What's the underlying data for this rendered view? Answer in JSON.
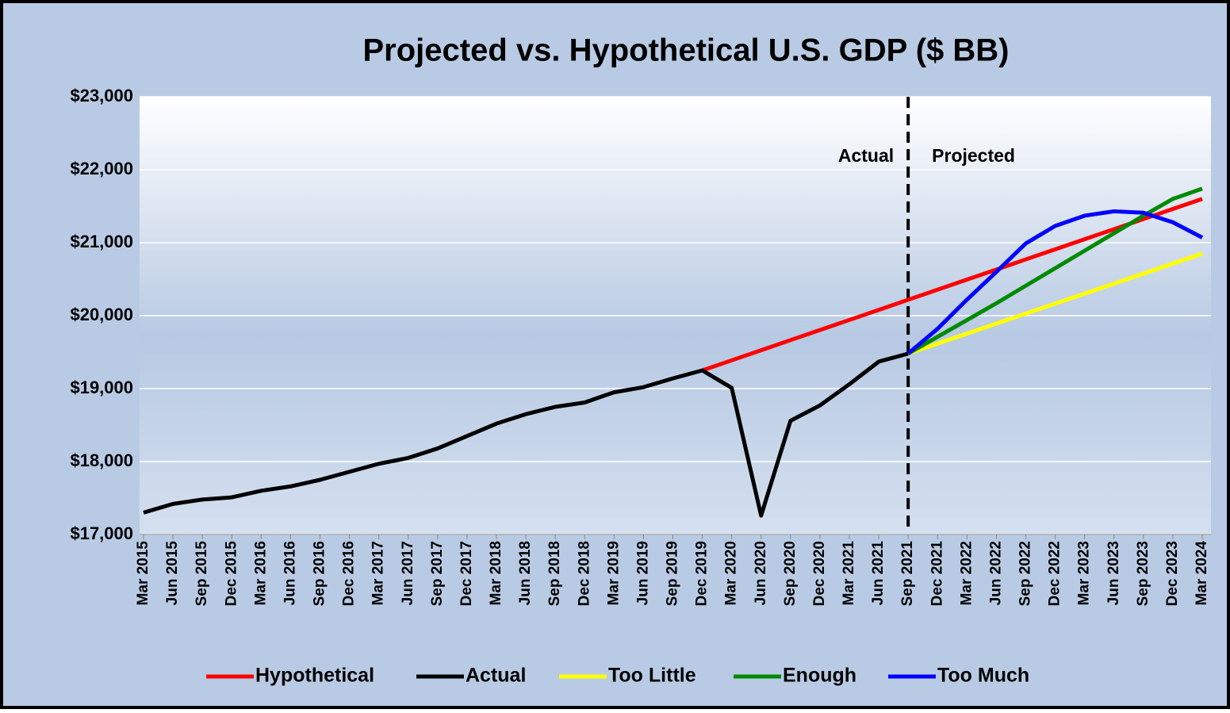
{
  "chart_data": {
    "type": "line",
    "title": "Projected vs. Hypothetical U.S. GDP ($ BB)",
    "categories": [
      "Mar 2015",
      "Jun 2015",
      "Sep 2015",
      "Dec 2015",
      "Mar 2016",
      "Jun 2016",
      "Sep 2016",
      "Dec 2016",
      "Mar 2017",
      "Jun 2017",
      "Sep 2017",
      "Dec 2017",
      "Mar 2018",
      "Jun 2018",
      "Sep 2018",
      "Dec 2018",
      "Mar 2019",
      "Jun 2019",
      "Sep 2019",
      "Dec 2019",
      "Mar 2020",
      "Jun 2020",
      "Sep 2020",
      "Dec 2020",
      "Mar 2021",
      "Jun 2021",
      "Sep 2021",
      "Dec 2021",
      "Mar 2022",
      "Jun 2022",
      "Sep 2022",
      "Dec 2022",
      "Mar 2023",
      "Jun 2023",
      "Sep 2023",
      "Dec 2023",
      "Mar 2024"
    ],
    "series": [
      {
        "name": "Hypothetical",
        "color": "#ff0000",
        "values": [
          null,
          null,
          null,
          null,
          null,
          null,
          null,
          null,
          null,
          null,
          null,
          null,
          null,
          null,
          null,
          null,
          null,
          null,
          null,
          19250,
          19388,
          19526,
          19665,
          19803,
          19941,
          20079,
          20218,
          20356,
          20494,
          20632,
          20771,
          20909,
          21047,
          21185,
          21324,
          21462,
          21600
        ]
      },
      {
        "name": "Actual",
        "color": "#000000",
        "values": [
          17300,
          17420,
          17480,
          17510,
          17600,
          17660,
          17750,
          17860,
          17970,
          18050,
          18180,
          18350,
          18520,
          18650,
          18750,
          18810,
          18950,
          19020,
          19140,
          19250,
          19010,
          17260,
          18560,
          18770,
          19060,
          19370,
          19480,
          null,
          null,
          null,
          null,
          null,
          null,
          null,
          null,
          null,
          null
        ]
      },
      {
        "name": "Too Little",
        "color": "#ffff00",
        "values": [
          null,
          null,
          null,
          null,
          null,
          null,
          null,
          null,
          null,
          null,
          null,
          null,
          null,
          null,
          null,
          null,
          null,
          null,
          null,
          null,
          null,
          null,
          null,
          null,
          null,
          null,
          19480,
          19617,
          19754,
          19891,
          20028,
          20165,
          20302,
          20439,
          20576,
          20713,
          20850
        ]
      },
      {
        "name": "Enough",
        "color": "#008a00",
        "values": [
          null,
          null,
          null,
          null,
          null,
          null,
          null,
          null,
          null,
          null,
          null,
          null,
          null,
          null,
          null,
          null,
          null,
          null,
          null,
          null,
          null,
          null,
          null,
          null,
          null,
          null,
          19480,
          19710,
          19940,
          20170,
          20410,
          20650,
          20890,
          21130,
          21370,
          21600,
          21740
        ]
      },
      {
        "name": "Too Much",
        "color": "#0000ff",
        "values": [
          null,
          null,
          null,
          null,
          null,
          null,
          null,
          null,
          null,
          null,
          null,
          null,
          null,
          null,
          null,
          null,
          null,
          null,
          null,
          null,
          null,
          null,
          null,
          null,
          null,
          null,
          19480,
          19820,
          20220,
          20600,
          20990,
          21230,
          21370,
          21430,
          21410,
          21280,
          21070
        ]
      }
    ],
    "ylim": [
      17000,
      23000
    ],
    "yticks": [
      {
        "value": 17000,
        "label": "$17,000"
      },
      {
        "value": 18000,
        "label": "$18,000"
      },
      {
        "value": 19000,
        "label": "$19,000"
      },
      {
        "value": 20000,
        "label": "$20,000"
      },
      {
        "value": 21000,
        "label": "$21,000"
      },
      {
        "value": 22000,
        "label": "$22,000"
      },
      {
        "value": 23000,
        "label": "$23,000"
      }
    ],
    "grid": true,
    "divider": "Sep 2021",
    "annotations": [
      "Actual",
      "Projected"
    ],
    "legend": "bottom"
  }
}
